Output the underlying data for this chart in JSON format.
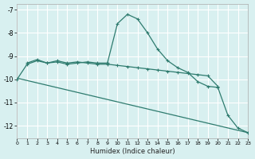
{
  "xlabel": "Humidex (Indice chaleur)",
  "bg_color": "#d8f0f0",
  "grid_color": "#ffffff",
  "line_color": "#2e7b6e",
  "xlim": [
    0,
    23
  ],
  "ylim": [
    -12.55,
    -6.75
  ],
  "yticks": [
    -12,
    -11,
    -10,
    -9,
    -8,
    -7
  ],
  "xticks": [
    0,
    1,
    2,
    3,
    4,
    5,
    6,
    7,
    8,
    9,
    10,
    11,
    12,
    13,
    14,
    15,
    16,
    17,
    18,
    19,
    20,
    21,
    22,
    23
  ],
  "curve1_x": [
    0,
    1,
    2,
    3,
    4,
    5,
    6,
    7,
    8,
    9,
    10,
    11,
    12,
    13,
    14,
    15,
    16,
    17,
    18,
    19,
    20,
    21,
    22,
    23
  ],
  "curve1_y": [
    -10.0,
    -9.35,
    -9.2,
    -9.3,
    -9.25,
    -9.35,
    -9.3,
    -9.25,
    -9.3,
    -9.3,
    -7.6,
    -7.2,
    -7.4,
    -8.0,
    -8.7,
    -9.2,
    -9.5,
    -9.7,
    -10.1,
    -10.3,
    -10.35,
    -11.55,
    -12.1,
    -12.3
  ],
  "curve2_x": [
    1,
    2,
    3,
    4,
    5,
    6,
    7,
    8,
    9,
    10,
    11,
    12,
    13,
    14,
    15,
    16,
    17,
    18,
    19,
    20
  ],
  "curve2_y": [
    -9.3,
    -9.15,
    -9.3,
    -9.2,
    -9.3,
    -9.25,
    -9.3,
    -9.35,
    -9.35,
    -9.4,
    -9.45,
    -9.5,
    -9.55,
    -9.6,
    -9.65,
    -9.7,
    -9.75,
    -9.8,
    -9.85,
    -10.3
  ],
  "curve3_x": [
    0,
    23
  ],
  "curve3_y": [
    -9.95,
    -12.3
  ]
}
